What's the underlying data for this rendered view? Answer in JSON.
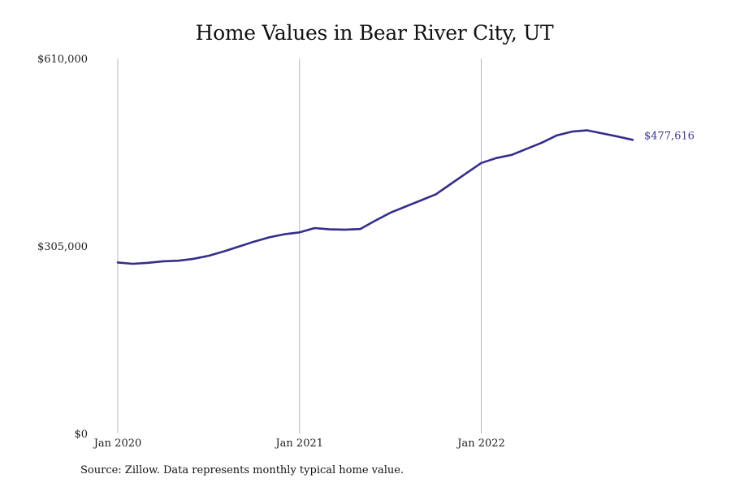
{
  "chart_data": {
    "type": "line",
    "title": "Home Values in Bear River City, UT",
    "source": "Source: Zillow. Data represents monthly typical home value.",
    "ylim": [
      0,
      610000
    ],
    "y_ticks": [
      {
        "value": 0,
        "label": "$0"
      },
      {
        "value": 305000,
        "label": "$305,000"
      },
      {
        "value": 610000,
        "label": "$610,000"
      }
    ],
    "x_ticks": [
      {
        "x": "2020-01",
        "label": "Jan 2020"
      },
      {
        "x": "2021-01",
        "label": "Jan 2021"
      },
      {
        "x": "2022-01",
        "label": "Jan 2022"
      }
    ],
    "xlim": [
      "2020-01",
      "2022-12"
    ],
    "grid": {
      "vertical": true,
      "horizontal": false
    },
    "line_color": "#332e8a",
    "gridline_color": "#b8b8b8",
    "end_label": "$477,616",
    "series": [
      {
        "x": [
          "2020-01",
          "2020-02",
          "2020-03",
          "2020-04",
          "2020-05",
          "2020-06",
          "2020-07",
          "2020-08",
          "2020-09",
          "2020-10",
          "2020-11",
          "2020-12",
          "2021-01",
          "2021-02",
          "2021-03",
          "2021-04",
          "2021-05",
          "2021-06",
          "2021-07",
          "2021-08",
          "2021-09",
          "2021-10",
          "2021-11",
          "2021-12",
          "2022-01",
          "2022-02",
          "2022-03",
          "2022-04",
          "2022-05",
          "2022-06",
          "2022-07",
          "2022-08",
          "2022-09",
          "2022-10",
          "2022-11"
        ],
        "values": [
          278000,
          276000,
          277500,
          280000,
          281000,
          284000,
          289000,
          296000,
          304000,
          312000,
          319000,
          324000,
          327000,
          334000,
          332000,
          331500,
          332500,
          346000,
          359000,
          369000,
          379000,
          389000,
          406000,
          423000,
          440000,
          448000,
          453000,
          463000,
          473000,
          485000,
          491000,
          493000,
          488000,
          483000,
          477616
        ]
      }
    ]
  }
}
